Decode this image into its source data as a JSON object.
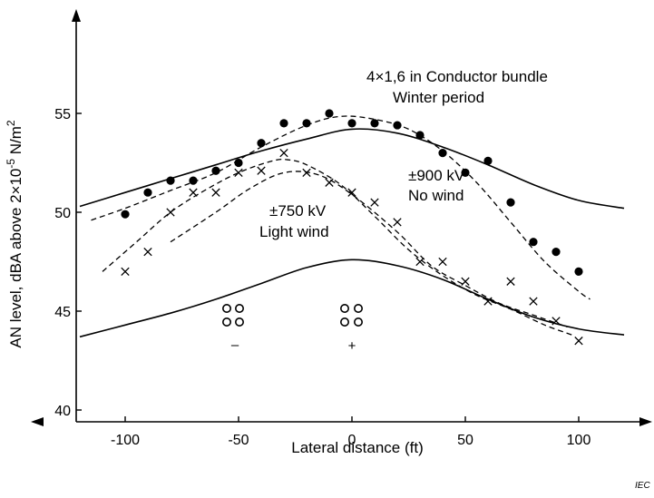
{
  "chart_data": {
    "type": "scatter",
    "xlabel": "Lateral distance  (ft)",
    "ylabel": "AN level, dBA above 2×10",
    "ylabel_exponent": "-5",
    "ylabel_unit": " N/m",
    "ylabel_unit_exponent": "2",
    "xlim": [
      -120,
      120
    ],
    "ylim": [
      39.5,
      56
    ],
    "xticks": [
      -100,
      -50,
      0,
      50,
      100
    ],
    "xtick_labels": [
      "-100",
      "-50",
      "0",
      "50",
      "100"
    ],
    "yticks": [
      40,
      45,
      50,
      55
    ],
    "ytick_labels": [
      "40",
      "45",
      "50",
      "55"
    ],
    "grid": false,
    "credit": "IEC",
    "annotations": [
      {
        "lines": [
          "4×1,6 in Conductor bundle",
          "Winter period"
        ]
      },
      {
        "lines": [
          "±900 kV",
          "No wind"
        ]
      },
      {
        "lines": [
          "±750 kV",
          "Light wind"
        ]
      }
    ],
    "polarity_labels": [
      "–",
      "+"
    ],
    "series": [
      {
        "marker": "dot",
        "points": [
          [
            -100,
            49.9
          ],
          [
            -90,
            51.0
          ],
          [
            -80,
            51.6
          ],
          [
            -70,
            51.6
          ],
          [
            -60,
            52.1
          ],
          [
            -50,
            52.5
          ],
          [
            -40,
            53.5
          ],
          [
            -30,
            54.5
          ],
          [
            -20,
            54.5
          ],
          [
            -10,
            55.0
          ],
          [
            0,
            54.5
          ],
          [
            10,
            54.5
          ],
          [
            20,
            54.4
          ],
          [
            30,
            53.9
          ],
          [
            40,
            53.0
          ],
          [
            50,
            52.0
          ],
          [
            60,
            52.6
          ],
          [
            70,
            50.5
          ],
          [
            80,
            48.5
          ],
          [
            90,
            48.0
          ],
          [
            100,
            47.0
          ]
        ]
      },
      {
        "marker": "cross",
        "points": [
          [
            -100,
            47.0
          ],
          [
            -90,
            48.0
          ],
          [
            -80,
            50.0
          ],
          [
            -70,
            51.0
          ],
          [
            -60,
            51.0
          ],
          [
            -50,
            52.0
          ],
          [
            -40,
            52.1
          ],
          [
            -30,
            53.0
          ],
          [
            -20,
            52.0
          ],
          [
            -10,
            51.5
          ],
          [
            0,
            51.0
          ],
          [
            10,
            50.5
          ],
          [
            20,
            49.5
          ],
          [
            30,
            47.5
          ],
          [
            40,
            47.5
          ],
          [
            50,
            46.5
          ],
          [
            60,
            45.5
          ],
          [
            70,
            46.5
          ],
          [
            80,
            45.5
          ],
          [
            90,
            44.5
          ],
          [
            100,
            43.5
          ]
        ]
      }
    ],
    "curves": [
      {
        "style": "solid",
        "points": [
          [
            -120,
            50.3
          ],
          [
            -100,
            51.0
          ],
          [
            -80,
            51.7
          ],
          [
            -60,
            52.4
          ],
          [
            -40,
            53.1
          ],
          [
            -20,
            53.7
          ],
          [
            0,
            54.2
          ],
          [
            20,
            54.0
          ],
          [
            40,
            53.3
          ],
          [
            60,
            52.4
          ],
          [
            80,
            51.4
          ],
          [
            100,
            50.6
          ],
          [
            120,
            50.2
          ]
        ]
      },
      {
        "style": "solid",
        "points": [
          [
            -120,
            43.7
          ],
          [
            -100,
            44.3
          ],
          [
            -80,
            44.9
          ],
          [
            -60,
            45.6
          ],
          [
            -40,
            46.4
          ],
          [
            -20,
            47.2
          ],
          [
            0,
            47.6
          ],
          [
            20,
            47.3
          ],
          [
            40,
            46.6
          ],
          [
            60,
            45.6
          ],
          [
            80,
            44.7
          ],
          [
            100,
            44.1
          ],
          [
            120,
            43.8
          ]
        ]
      },
      {
        "style": "dashed",
        "points": [
          [
            -115,
            49.6
          ],
          [
            -100,
            50.2
          ],
          [
            -80,
            51.1
          ],
          [
            -60,
            52.0
          ],
          [
            -40,
            53.3
          ],
          [
            -20,
            54.4
          ],
          [
            -5,
            54.85
          ],
          [
            10,
            54.7
          ],
          [
            25,
            54.2
          ],
          [
            40,
            53.1
          ],
          [
            55,
            51.5
          ],
          [
            70,
            49.5
          ],
          [
            85,
            47.5
          ],
          [
            100,
            46.0
          ],
          [
            105,
            45.6
          ]
        ]
      },
      {
        "style": "dashed",
        "points": [
          [
            -110,
            47.0
          ],
          [
            -95,
            48.5
          ],
          [
            -80,
            50.0
          ],
          [
            -65,
            51.1
          ],
          [
            -50,
            52.0
          ],
          [
            -35,
            52.6
          ],
          [
            -28,
            52.65
          ],
          [
            -20,
            52.4
          ],
          [
            -5,
            51.4
          ],
          [
            10,
            49.8
          ],
          [
            25,
            48.1
          ],
          [
            40,
            46.8
          ],
          [
            55,
            45.8
          ],
          [
            70,
            45.1
          ],
          [
            85,
            44.3
          ],
          [
            97,
            43.8
          ]
        ]
      },
      {
        "style": "dashed",
        "points": [
          [
            -80,
            48.5
          ],
          [
            -60,
            50.0
          ],
          [
            -45,
            51.2
          ],
          [
            -30,
            52.0
          ],
          [
            -15,
            51.9
          ],
          [
            0,
            50.9
          ],
          [
            20,
            49.0
          ],
          [
            35,
            47.3
          ],
          [
            50,
            46.3
          ],
          [
            65,
            45.4
          ],
          [
            80,
            44.8
          ],
          [
            95,
            44.2
          ]
        ]
      }
    ]
  }
}
